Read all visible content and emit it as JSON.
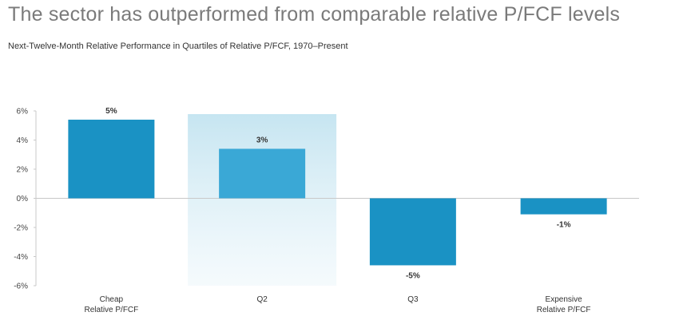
{
  "title": "The sector has outperformed from comparable relative P/FCF levels",
  "subtitle": "Next-Twelve-Month Relative Performance in Quartiles of Relative P/FCF, 1970–Present",
  "chart_data": {
    "type": "bar",
    "categories": [
      [
        "Cheap",
        "Relative P/FCF"
      ],
      [
        "Q2"
      ],
      [
        "Q3"
      ],
      [
        "Expensive",
        "Relative P/FCF"
      ]
    ],
    "values": [
      5.4,
      3.4,
      -4.6,
      -1.1
    ],
    "data_labels": [
      "5%",
      "3%",
      "-5%",
      "-1%"
    ],
    "yticks": [
      6,
      4,
      2,
      0,
      -2,
      -4,
      -6
    ],
    "ytick_labels": [
      "6%",
      "4%",
      "2%",
      "0%",
      "-2%",
      "-4%",
      "-6%"
    ],
    "ylim": [
      -6,
      6
    ],
    "highlight_category": 1,
    "grid": false,
    "colors": {
      "bar": "#1a92c4",
      "bar_highlight": "#3aa8d6",
      "highlight_band": "#cfe9f3",
      "axis": "#c8c8c8"
    }
  }
}
